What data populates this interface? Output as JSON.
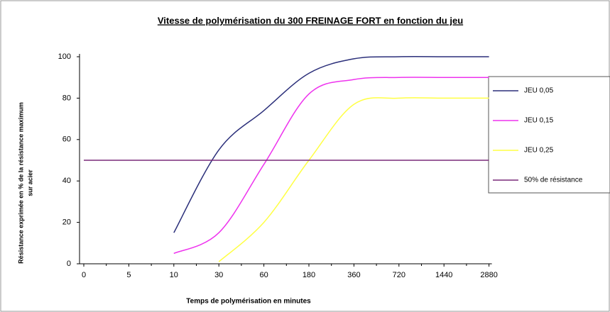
{
  "chart_data": {
    "type": "line",
    "title": "Vitesse de polymérisation du 300 FREINAGE FORT en fonction du jeu",
    "x_label": "Temps de polymérisation  en minutes",
    "y_label": [
      "Résistance exprimée en % de la résistance maximum",
      "sur acier"
    ],
    "categories": [
      "0",
      "5",
      "10",
      "30",
      "60",
      "180",
      "360",
      "720",
      "1440",
      "2880"
    ],
    "series": [
      {
        "name": "JEU 0,05",
        "color": "#2b2f7a",
        "values": [
          null,
          null,
          15,
          55,
          74,
          92,
          99,
          100,
          100,
          100
        ]
      },
      {
        "name": "JEU 0,15",
        "color": "#ee33ee",
        "values": [
          null,
          null,
          5,
          15,
          48,
          82,
          89,
          90,
          90,
          90
        ]
      },
      {
        "name": "JEU 0,25",
        "color": "#ffff44",
        "values": [
          null,
          null,
          null,
          1,
          20,
          50,
          77,
          80,
          80,
          80
        ]
      },
      {
        "name": "50% de résistance",
        "color": "#7a2a7a",
        "values": [
          50,
          50,
          50,
          50,
          50,
          50,
          50,
          50,
          50,
          50
        ]
      }
    ],
    "ylim": [
      0,
      100
    ],
    "yticks": [
      0,
      20,
      40,
      60,
      80,
      100
    ],
    "grid": false,
    "smooth": true,
    "legend": "right"
  }
}
